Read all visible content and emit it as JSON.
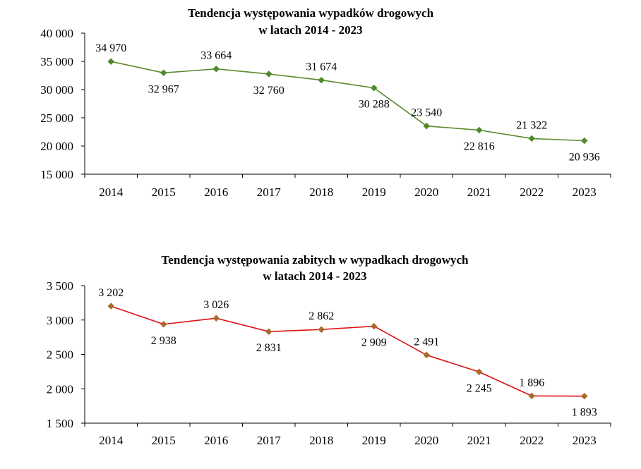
{
  "chart_data": [
    {
      "type": "line",
      "title": [
        "Tendencja występowania wypadków drogowych",
        "w latach 2014 - 2023"
      ],
      "categories": [
        "2014",
        "2015",
        "2016",
        "2017",
        "2018",
        "2019",
        "2020",
        "2021",
        "2022",
        "2023"
      ],
      "values": [
        34970,
        32967,
        33664,
        32760,
        31674,
        30288,
        23540,
        22816,
        21322,
        20936
      ],
      "value_labels": [
        "34 970",
        "32 967",
        "33 664",
        "32 760",
        "31 674",
        "30 288",
        "23 540",
        "22 816",
        "21 322",
        "20 936"
      ],
      "label_positions": [
        "above",
        "below",
        "above",
        "below",
        "above",
        "below",
        "above",
        "below",
        "above",
        "below"
      ],
      "ylim": [
        15000,
        40000
      ],
      "yticks": [
        15000,
        20000,
        25000,
        30000,
        35000,
        40000
      ],
      "ytick_labels": [
        "15 000",
        "20 000",
        "25 000",
        "30 000",
        "35 000",
        "40 000"
      ],
      "grid": false,
      "line_color": "#5a8a2e",
      "marker_fill": "#4f8a2a",
      "marker_shape": "diamond"
    },
    {
      "type": "line",
      "title": [
        "Tendencja występowania zabitych w wypadkach drogowych",
        "w latach 2014 - 2023"
      ],
      "categories": [
        "2014",
        "2015",
        "2016",
        "2017",
        "2018",
        "2019",
        "2020",
        "2021",
        "2022",
        "2023"
      ],
      "values": [
        3202,
        2938,
        3026,
        2831,
        2862,
        2909,
        2491,
        2245,
        1896,
        1893
      ],
      "value_labels": [
        "3 202",
        "2 938",
        "3 026",
        "2 831",
        "2 862",
        "2 909",
        "2 491",
        "2 245",
        "1 896",
        "1 893"
      ],
      "label_positions": [
        "above",
        "below",
        "above",
        "below",
        "above",
        "below",
        "above",
        "below",
        "above",
        "below"
      ],
      "ylim": [
        1500,
        3500
      ],
      "yticks": [
        1500,
        2000,
        2500,
        3000,
        3500
      ],
      "ytick_labels": [
        "1 500",
        "2 000",
        "2 500",
        "3 000",
        "3 500"
      ],
      "grid": false,
      "line_color": "#e01010",
      "marker_fill": "#a86a2a",
      "marker_shape": "diamond"
    }
  ]
}
